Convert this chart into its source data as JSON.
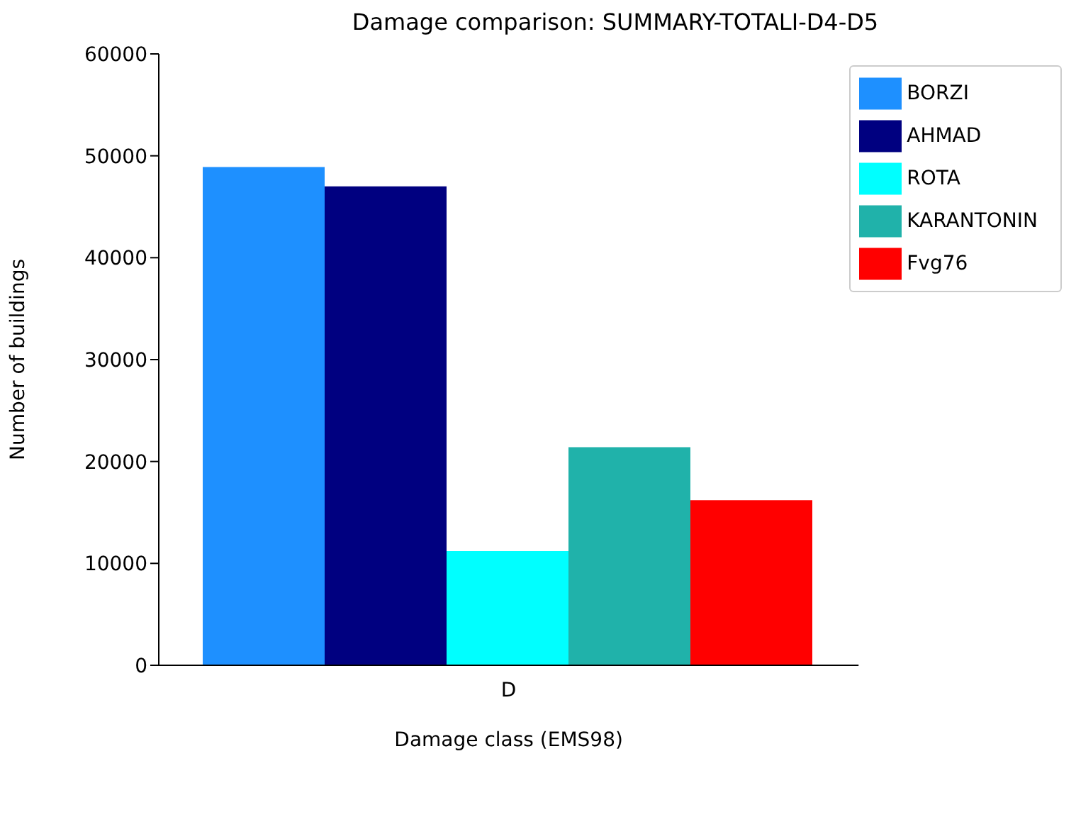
{
  "chart_data": {
    "type": "bar",
    "title": "Damage comparison: SUMMARY-TOTALI-D4-D5",
    "xlabel": "Damage class (EMS98)",
    "ylabel": "Number of buildings",
    "categories": [
      "D"
    ],
    "series": [
      {
        "name": "BORZI",
        "color": "#1e90ff",
        "values": [
          48900
        ]
      },
      {
        "name": "AHMAD",
        "color": "#000080",
        "values": [
          47000
        ]
      },
      {
        "name": "ROTA",
        "color": "#00ffff",
        "values": [
          11200
        ]
      },
      {
        "name": "KARANTONIN",
        "color": "#20b2aa",
        "values": [
          21400
        ]
      },
      {
        "name": "Fvg76",
        "color": "#ff0000",
        "values": [
          16200
        ]
      }
    ],
    "ylim": [
      0,
      60000
    ],
    "yticks": [
      0,
      10000,
      20000,
      30000,
      40000,
      50000,
      60000
    ],
    "grid": false,
    "legend": "top right"
  }
}
